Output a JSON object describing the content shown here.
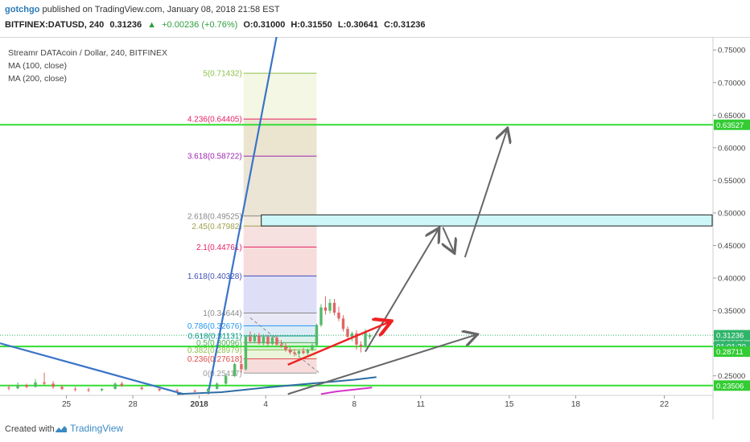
{
  "header": {
    "username": "gotchgo",
    "published_text": "published on TradingView.com, January 08, 2018 21:58 EST",
    "symbol": "BITFINEX:DATUSD, 240",
    "last": "0.31236",
    "change": "+0.00236 (+0.76%)",
    "open": "O:0.31000",
    "high": "H:0.31550",
    "low": "L:0.30641",
    "close": "C:0.31236"
  },
  "legend": {
    "title": "Streamr DATAcoin / Dollar, 240, BITFINEX",
    "ma100": "MA (100, close)",
    "ma200": "MA (200, close)"
  },
  "footer": {
    "created": "Created with",
    "brand": "TradingView"
  },
  "colors": {
    "green_line": "#33dd33",
    "blue_trend": "#3b74c8",
    "red_arrow": "#ee2222",
    "gray_arrow": "#666666",
    "box_fill": "#cdf6f8",
    "candle_up": "#56b86a",
    "candle_down": "#e06464",
    "ma_line": "#2d6da3"
  },
  "chart_data": {
    "type": "candlestick",
    "title": "Streamr DATAcoin / Dollar, 240, BITFINEX",
    "ylim": [
      0.22,
      0.77
    ],
    "y_ticks": [
      "0.25000",
      "0.30000",
      "0.35000",
      "0.40000",
      "0.45000",
      "0.50000",
      "0.55000",
      "0.60000",
      "0.65000",
      "0.70000",
      "0.75000"
    ],
    "x_ticks": [
      {
        "label": "25",
        "x": 0
      },
      {
        "label": "28",
        "x": 3
      },
      {
        "label": "2018",
        "x": 6
      },
      {
        "label": "4",
        "x": 9
      },
      {
        "label": "8",
        "x": 13
      },
      {
        "label": "11",
        "x": 16
      },
      {
        "label": "15",
        "x": 20
      },
      {
        "label": "18",
        "x": 23
      },
      {
        "label": "22",
        "x": 27
      }
    ],
    "xlim": [
      -3,
      29.2
    ],
    "price_labels": [
      {
        "text": "0.63527",
        "value": 0.63527,
        "color": "#33cc33"
      },
      {
        "text": "0.31236",
        "value": 0.31236,
        "color": "#2fb56a"
      },
      {
        "text": "01:01:20",
        "value": 0.2955,
        "color": "#2fb56a"
      },
      {
        "text": "0.28711",
        "value": 0.28711,
        "color": "#33cc33"
      },
      {
        "text": "0.23506",
        "value": 0.23506,
        "color": "#33cc33"
      }
    ],
    "horizontal_lines": [
      0.63527,
      0.295,
      0.23506
    ],
    "last_price": 0.31236,
    "fib_levels": [
      {
        "label": "0(0.25417)",
        "value": 0.25417,
        "color": "#999999"
      },
      {
        "label": "0.236(0.27618)",
        "value": 0.27618,
        "color": "#e24a4a"
      },
      {
        "label": "0.382(0.28979)",
        "value": 0.28979,
        "color": "#8bc34a"
      },
      {
        "label": "0.5(0.30096)",
        "value": 0.30096,
        "color": "#4caf50"
      },
      {
        "label": "0.618(0.31131)",
        "value": 0.31131,
        "color": "#009688"
      },
      {
        "label": "0.786(0.32676)",
        "value": 0.32676,
        "color": "#2196f3"
      },
      {
        "label": "1(0.34644)",
        "value": 0.34644,
        "color": "#888888"
      },
      {
        "label": "1.618(0.40328)",
        "value": 0.40328,
        "color": "#3f51b5"
      },
      {
        "label": "2.1(0.44761)",
        "value": 0.44761,
        "color": "#e91e63"
      },
      {
        "label": "2.45(0.47982)",
        "value": 0.47982,
        "color": "#a0a050"
      },
      {
        "label": "2.618(0.49525)",
        "value": 0.49525,
        "color": "#888888"
      },
      {
        "label": "3.618(0.58722)",
        "value": 0.58722,
        "color": "#9c27b0"
      },
      {
        "label": "4.236(0.64405)",
        "value": 0.64405,
        "color": "#e91e63"
      },
      {
        "label": "5(0.71432)",
        "value": 0.71432,
        "color": "#8bc34a"
      }
    ],
    "fib_x_range": [
      8.0,
      11.3
    ],
    "resistance_zone": [
      0.48,
      0.497
    ],
    "candles": [
      {
        "x": -2.6,
        "o": 0.232,
        "h": 0.236,
        "l": 0.228,
        "c": 0.231
      },
      {
        "x": -2.2,
        "o": 0.231,
        "h": 0.24,
        "l": 0.229,
        "c": 0.236
      },
      {
        "x": -1.8,
        "o": 0.236,
        "h": 0.238,
        "l": 0.231,
        "c": 0.233
      },
      {
        "x": -1.4,
        "o": 0.233,
        "h": 0.245,
        "l": 0.232,
        "c": 0.24
      },
      {
        "x": -1.0,
        "o": 0.24,
        "h": 0.255,
        "l": 0.236,
        "c": 0.238
      },
      {
        "x": -0.6,
        "o": 0.238,
        "h": 0.242,
        "l": 0.23,
        "c": 0.233
      },
      {
        "x": -0.2,
        "o": 0.233,
        "h": 0.236,
        "l": 0.228,
        "c": 0.23
      },
      {
        "x": 0.4,
        "o": 0.23,
        "h": 0.233,
        "l": 0.226,
        "c": 0.229
      },
      {
        "x": 1.0,
        "o": 0.229,
        "h": 0.232,
        "l": 0.225,
        "c": 0.228
      },
      {
        "x": 1.6,
        "o": 0.228,
        "h": 0.231,
        "l": 0.226,
        "c": 0.23
      },
      {
        "x": 2.2,
        "o": 0.23,
        "h": 0.24,
        "l": 0.229,
        "c": 0.238
      },
      {
        "x": 2.5,
        "o": 0.238,
        "h": 0.241,
        "l": 0.233,
        "c": 0.235
      },
      {
        "x": 3.4,
        "o": 0.232,
        "h": 0.234,
        "l": 0.228,
        "c": 0.23
      },
      {
        "x": 4.2,
        "o": 0.23,
        "h": 0.232,
        "l": 0.226,
        "c": 0.228
      },
      {
        "x": 5.0,
        "o": 0.228,
        "h": 0.23,
        "l": 0.225,
        "c": 0.227
      },
      {
        "x": 5.8,
        "o": 0.227,
        "h": 0.229,
        "l": 0.224,
        "c": 0.226
      },
      {
        "x": 6.4,
        "o": 0.226,
        "h": 0.232,
        "l": 0.224,
        "c": 0.23
      },
      {
        "x": 6.8,
        "o": 0.23,
        "h": 0.24,
        "l": 0.229,
        "c": 0.238
      },
      {
        "x": 7.2,
        "o": 0.238,
        "h": 0.252,
        "l": 0.236,
        "c": 0.25
      },
      {
        "x": 7.6,
        "o": 0.25,
        "h": 0.27,
        "l": 0.248,
        "c": 0.268
      },
      {
        "x": 7.9,
        "o": 0.268,
        "h": 0.282,
        "l": 0.255,
        "c": 0.26
      },
      {
        "x": 8.1,
        "o": 0.26,
        "h": 0.312,
        "l": 0.258,
        "c": 0.31
      },
      {
        "x": 8.3,
        "o": 0.31,
        "h": 0.318,
        "l": 0.3,
        "c": 0.303
      },
      {
        "x": 8.5,
        "o": 0.303,
        "h": 0.315,
        "l": 0.3,
        "c": 0.312
      },
      {
        "x": 8.7,
        "o": 0.312,
        "h": 0.316,
        "l": 0.298,
        "c": 0.3
      },
      {
        "x": 8.9,
        "o": 0.3,
        "h": 0.314,
        "l": 0.297,
        "c": 0.31
      },
      {
        "x": 9.1,
        "o": 0.31,
        "h": 0.313,
        "l": 0.296,
        "c": 0.299
      },
      {
        "x": 9.3,
        "o": 0.299,
        "h": 0.312,
        "l": 0.297,
        "c": 0.309
      },
      {
        "x": 9.5,
        "o": 0.309,
        "h": 0.311,
        "l": 0.295,
        "c": 0.298
      },
      {
        "x": 9.7,
        "o": 0.298,
        "h": 0.305,
        "l": 0.293,
        "c": 0.296
      },
      {
        "x": 9.9,
        "o": 0.296,
        "h": 0.3,
        "l": 0.287,
        "c": 0.29
      },
      {
        "x": 10.1,
        "o": 0.29,
        "h": 0.295,
        "l": 0.283,
        "c": 0.286
      },
      {
        "x": 10.3,
        "o": 0.286,
        "h": 0.291,
        "l": 0.28,
        "c": 0.284
      },
      {
        "x": 10.5,
        "o": 0.284,
        "h": 0.29,
        "l": 0.279,
        "c": 0.288
      },
      {
        "x": 10.7,
        "o": 0.288,
        "h": 0.293,
        "l": 0.283,
        "c": 0.285
      },
      {
        "x": 10.9,
        "o": 0.285,
        "h": 0.292,
        "l": 0.282,
        "c": 0.29
      },
      {
        "x": 11.1,
        "o": 0.29,
        "h": 0.3,
        "l": 0.288,
        "c": 0.297
      },
      {
        "x": 11.3,
        "o": 0.297,
        "h": 0.33,
        "l": 0.295,
        "c": 0.328
      },
      {
        "x": 11.5,
        "o": 0.328,
        "h": 0.36,
        "l": 0.325,
        "c": 0.355
      },
      {
        "x": 11.7,
        "o": 0.355,
        "h": 0.372,
        "l": 0.344,
        "c": 0.35
      },
      {
        "x": 11.9,
        "o": 0.35,
        "h": 0.368,
        "l": 0.346,
        "c": 0.362
      },
      {
        "x": 12.1,
        "o": 0.362,
        "h": 0.368,
        "l": 0.343,
        "c": 0.347
      },
      {
        "x": 12.3,
        "o": 0.347,
        "h": 0.356,
        "l": 0.334,
        "c": 0.338
      },
      {
        "x": 12.5,
        "o": 0.338,
        "h": 0.343,
        "l": 0.318,
        "c": 0.322
      },
      {
        "x": 12.7,
        "o": 0.322,
        "h": 0.326,
        "l": 0.306,
        "c": 0.31
      },
      {
        "x": 12.9,
        "o": 0.31,
        "h": 0.318,
        "l": 0.303,
        "c": 0.315
      },
      {
        "x": 13.1,
        "o": 0.315,
        "h": 0.32,
        "l": 0.29,
        "c": 0.298
      },
      {
        "x": 13.3,
        "o": 0.298,
        "h": 0.303,
        "l": 0.286,
        "c": 0.295
      },
      {
        "x": 13.5,
        "o": 0.295,
        "h": 0.322,
        "l": 0.293,
        "c": 0.318
      },
      {
        "x": 13.7,
        "o": 0.31,
        "h": 0.3155,
        "l": 0.3064,
        "c": 0.31236
      }
    ],
    "ma200": [
      [
        5.0,
        0.222
      ],
      [
        7.0,
        0.225
      ],
      [
        9.0,
        0.232
      ],
      [
        11.0,
        0.238
      ],
      [
        13.0,
        0.244
      ],
      [
        14.0,
        0.248
      ]
    ],
    "ma100": [
      [
        11.5,
        0.222
      ],
      [
        12.2,
        0.226
      ],
      [
        13.0,
        0.229
      ],
      [
        13.8,
        0.232
      ]
    ],
    "trendlines": [
      {
        "from": [
          6.4,
          0.222
        ],
        "to": [
          9.6,
          0.79
        ],
        "color": "#3b74c8",
        "width": 2.2
      },
      {
        "from": [
          -3.0,
          0.3
        ],
        "to": [
          5.3,
          0.222
        ],
        "color": "#3b74c8",
        "width": 2.2
      }
    ],
    "gray_arrows": [
      {
        "from": [
          13.5,
          0.287
        ],
        "to": [
          16.8,
          0.475
        ],
        "head": true
      },
      {
        "from": [
          17.0,
          0.478
        ],
        "to": [
          17.5,
          0.44
        ],
        "head": true
      },
      {
        "from": [
          18.0,
          0.432
        ],
        "to": [
          19.9,
          0.628
        ],
        "head": true
      },
      {
        "from": [
          10.0,
          0.222
        ],
        "to": [
          18.5,
          0.313
        ],
        "head": true
      }
    ],
    "red_arrow": {
      "from": [
        10.0,
        0.267
      ],
      "to": [
        14.6,
        0.333
      ]
    },
    "dashed_line": {
      "from": [
        8.3,
        0.339
      ],
      "to": [
        11.4,
        0.255
      ]
    }
  }
}
